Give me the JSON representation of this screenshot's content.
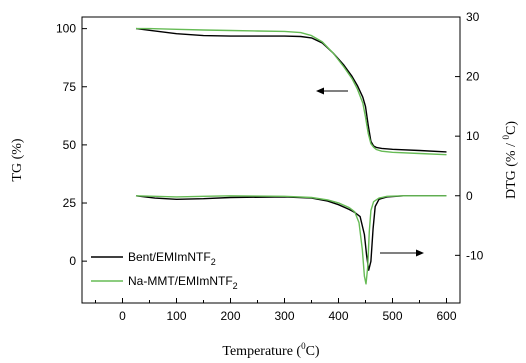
{
  "chart_data": {
    "type": "line",
    "xlabel": "Temperature (",
    "xlabel_sup": "0",
    "xlabel_tail": "C)",
    "ylabel": "TG (%)",
    "y2label": "DTG (% / ",
    "y2label_sup": "0",
    "y2label_tail": "C)",
    "xlim": [
      -75,
      625
    ],
    "ylim": [
      -18,
      105
    ],
    "y2lim": [
      -18,
      30
    ],
    "xticks": [
      "0",
      "100",
      "200",
      "300",
      "400",
      "500",
      "600"
    ],
    "yticks": [
      "0",
      "25",
      "50",
      "75",
      "100"
    ],
    "y2ticks": [
      "-10",
      "0",
      "10",
      "20",
      "30"
    ],
    "colors": {
      "bent": "#000000",
      "namt": "#66bb55"
    },
    "legend": [
      {
        "label": "Bent/EMImNTF",
        "sub": "2",
        "color": "#000000"
      },
      {
        "label": "Na-MMT/EMImNTF",
        "sub": "2",
        "color": "#66bb55"
      }
    ],
    "series": [
      {
        "name": "Bent/EMImNTF2",
        "axis": "left",
        "kind": "TG",
        "x": [
          25,
          50,
          100,
          150,
          200,
          250,
          300,
          330,
          350,
          370,
          390,
          410,
          425,
          435,
          445,
          450,
          455,
          460,
          465,
          470,
          480,
          500,
          550,
          600
        ],
        "y": [
          100,
          99.3,
          97.8,
          97.0,
          96.8,
          96.8,
          96.8,
          96.6,
          96.0,
          93.8,
          89.5,
          84.3,
          79.5,
          75.5,
          70.5,
          66.5,
          58.5,
          51.5,
          49.5,
          48.9,
          48.5,
          48.1,
          47.6,
          47.0
        ]
      },
      {
        "name": "Na-MMT/EMImNTF2",
        "axis": "left",
        "kind": "TG",
        "x": [
          25,
          50,
          100,
          150,
          200,
          250,
          300,
          330,
          350,
          370,
          390,
          410,
          425,
          435,
          445,
          450,
          455,
          460,
          465,
          470,
          480,
          500,
          550,
          600
        ],
        "y": [
          100,
          100,
          99.7,
          99.4,
          99.2,
          99.0,
          98.8,
          98.3,
          97.0,
          94.3,
          89.5,
          83.5,
          78.5,
          74.0,
          68.0,
          62.0,
          55.0,
          50.5,
          49.0,
          48.0,
          47.3,
          46.8,
          46.3,
          45.8
        ]
      },
      {
        "name": "Bent/EMImNTF2",
        "axis": "right",
        "kind": "DTG",
        "x": [
          25,
          60,
          100,
          150,
          200,
          300,
          350,
          380,
          400,
          420,
          430,
          440,
          448,
          452,
          456,
          460,
          464,
          468,
          475,
          490,
          520,
          600
        ],
        "y": [
          0.0,
          -0.4,
          -0.6,
          -0.5,
          -0.3,
          -0.2,
          -0.4,
          -0.9,
          -1.5,
          -2.3,
          -2.8,
          -3.5,
          -6.5,
          -10.0,
          -12.5,
          -11.0,
          -5.5,
          -1.8,
          -0.6,
          -0.2,
          0.0,
          0.0
        ]
      },
      {
        "name": "Na-MMT/EMImNTF2",
        "axis": "right",
        "kind": "DTG",
        "x": [
          25,
          60,
          100,
          150,
          200,
          300,
          350,
          380,
          400,
          420,
          430,
          438,
          444,
          448,
          451,
          454,
          457,
          460,
          465,
          475,
          490,
          520,
          600
        ],
        "y": [
          0.0,
          -0.1,
          -0.2,
          -0.1,
          0.0,
          -0.1,
          -0.3,
          -0.7,
          -1.2,
          -2.0,
          -2.7,
          -4.5,
          -9.0,
          -13.5,
          -14.8,
          -12.0,
          -6.0,
          -2.5,
          -1.0,
          -0.4,
          -0.1,
          0.0,
          0.0
        ]
      }
    ]
  }
}
